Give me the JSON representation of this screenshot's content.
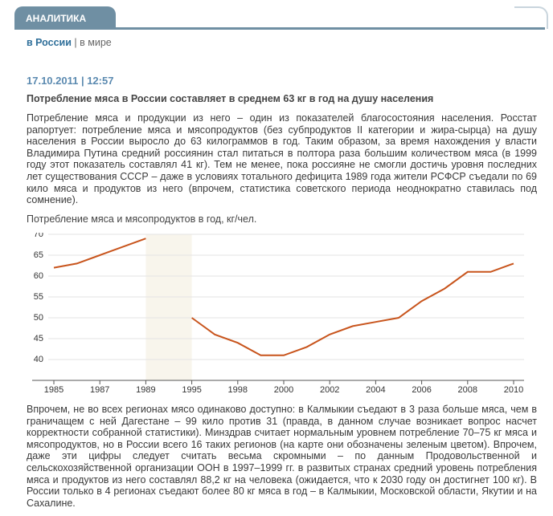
{
  "header": {
    "tab": "АНАЛИТИКА"
  },
  "nav": {
    "active": "в России",
    "separator": "|",
    "other": "в мире"
  },
  "article": {
    "date": "17.10.2011 | 12:57",
    "headline": "Потребление мяса в России составляет в среднем 63 кг в год на душу населения",
    "intro": "Потребление мяса и продукции из него – один из показателей благосостояния населения. Росстат рапортует: потребление мяса и мясопродуктов (без субпродуктов II категории и жира-сырца) на душу населения в России выросло до 63 килограммов в год. Таким образом, за время нахождения у власти Владимира Путина средний россиянин стал питаться в полтора раза большим количеством мяса (в 1999 году этот показатель составлял 41 кг). Тем не менее, пока россияне не смогли достичь уровня последних лет существования СССР – даже в условиях тотального дефицита 1989 года жители РСФСР съедали по 69 кило мяса и продуктов из него (впрочем, статистика советского периода неоднократно ставилась под сомнение).",
    "outro": "Впрочем, не во всех регионах мясо одинаково доступно: в Калмыкии съедают в 3 раза больше мяса, чем в граничащем с ней Дагестане – 99 кило против 31 (правда, в данном случае возникает вопрос насчет корректности собранной статистики). Минздрав считает нормальным уровнем потребление 70–75 кг мяса и мясопродуктов, но в России всего 16 таких регионов (на карте они обозначены зеленым цветом). Впрочем, даже эти цифры следует считать весьма скромными – по данным Продовольственной и сельскохозяйственной организации ООН в 1997–1999 гг. в развитых странах средний уровень потребления мяса и продуктов из него составлял 88,2 кг на человека (ожидается, что к 2030 году он достигнет 100 кг). В России только в 4 регионах съедают более 80 кг мяса в год – в Калмыкии, Московской области, Якутии и на Сахалине."
  },
  "chart_data": {
    "type": "line",
    "title": "Потребление мяса и мясопродуктов в год, кг/чел.",
    "categories": [
      "1985",
      null,
      "1987",
      null,
      "1989",
      null,
      "1995",
      null,
      "1998",
      null,
      "2000",
      null,
      "2002",
      null,
      "2004",
      null,
      "2006",
      null,
      "2008",
      null,
      "2010"
    ],
    "values": [
      62,
      63,
      65,
      67,
      69,
      null,
      50,
      46,
      44,
      41,
      41,
      43,
      46,
      48,
      49,
      50,
      54,
      57,
      61,
      61,
      63
    ],
    "color": "#c8541c",
    "ylim": [
      35,
      70
    ],
    "yticks": [
      40,
      45,
      50,
      55,
      60,
      65,
      70
    ],
    "grid": true
  }
}
